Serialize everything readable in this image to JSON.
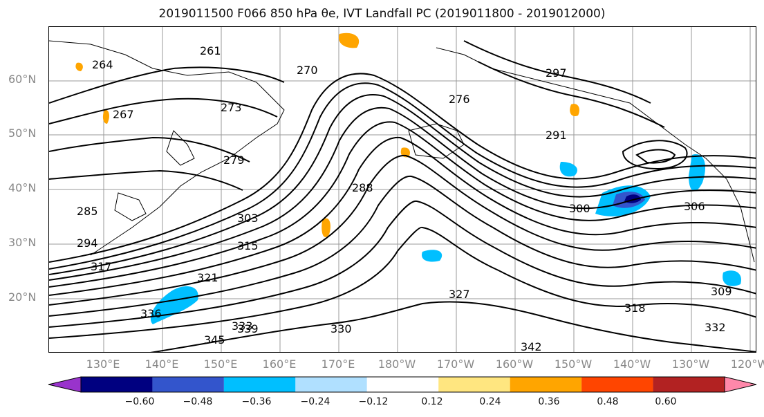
{
  "title": "2019011500 F066 850 hPa θe, IVT Landfall PC (2019011800 - 2019012000)",
  "lat_labels": [
    "60°N",
    "50°N",
    "40°N",
    "30°N",
    "20°N"
  ],
  "lon_labels": [
    "130°E",
    "140°E",
    "150°E",
    "160°E",
    "170°E",
    "180°W",
    "170°W",
    "160°W",
    "150°W",
    "140°W",
    "130°W",
    "120°W"
  ],
  "contour_labels": [
    "264",
    "261",
    "270",
    "267",
    "279",
    "273",
    "276",
    "285",
    "288",
    "294",
    "291",
    "297",
    "300",
    "303",
    "306",
    "309",
    "315",
    "317",
    "318",
    "321",
    "327",
    "330",
    "332",
    "333",
    "336",
    "339",
    "342",
    "345"
  ],
  "colorbar": {
    "ticks": [
      "−0.60",
      "−0.48",
      "−0.36",
      "−0.24",
      "−0.12",
      "0.12",
      "0.24",
      "0.36",
      "0.48",
      "0.60"
    ],
    "colors": [
      "#9933cc",
      "#000080",
      "#3355cc",
      "#00bfff",
      "#b0e0ff",
      "#ffffff",
      "#ffe680",
      "#ffa500",
      "#ff4500",
      "#b22222",
      "#ff88aa"
    ]
  }
}
